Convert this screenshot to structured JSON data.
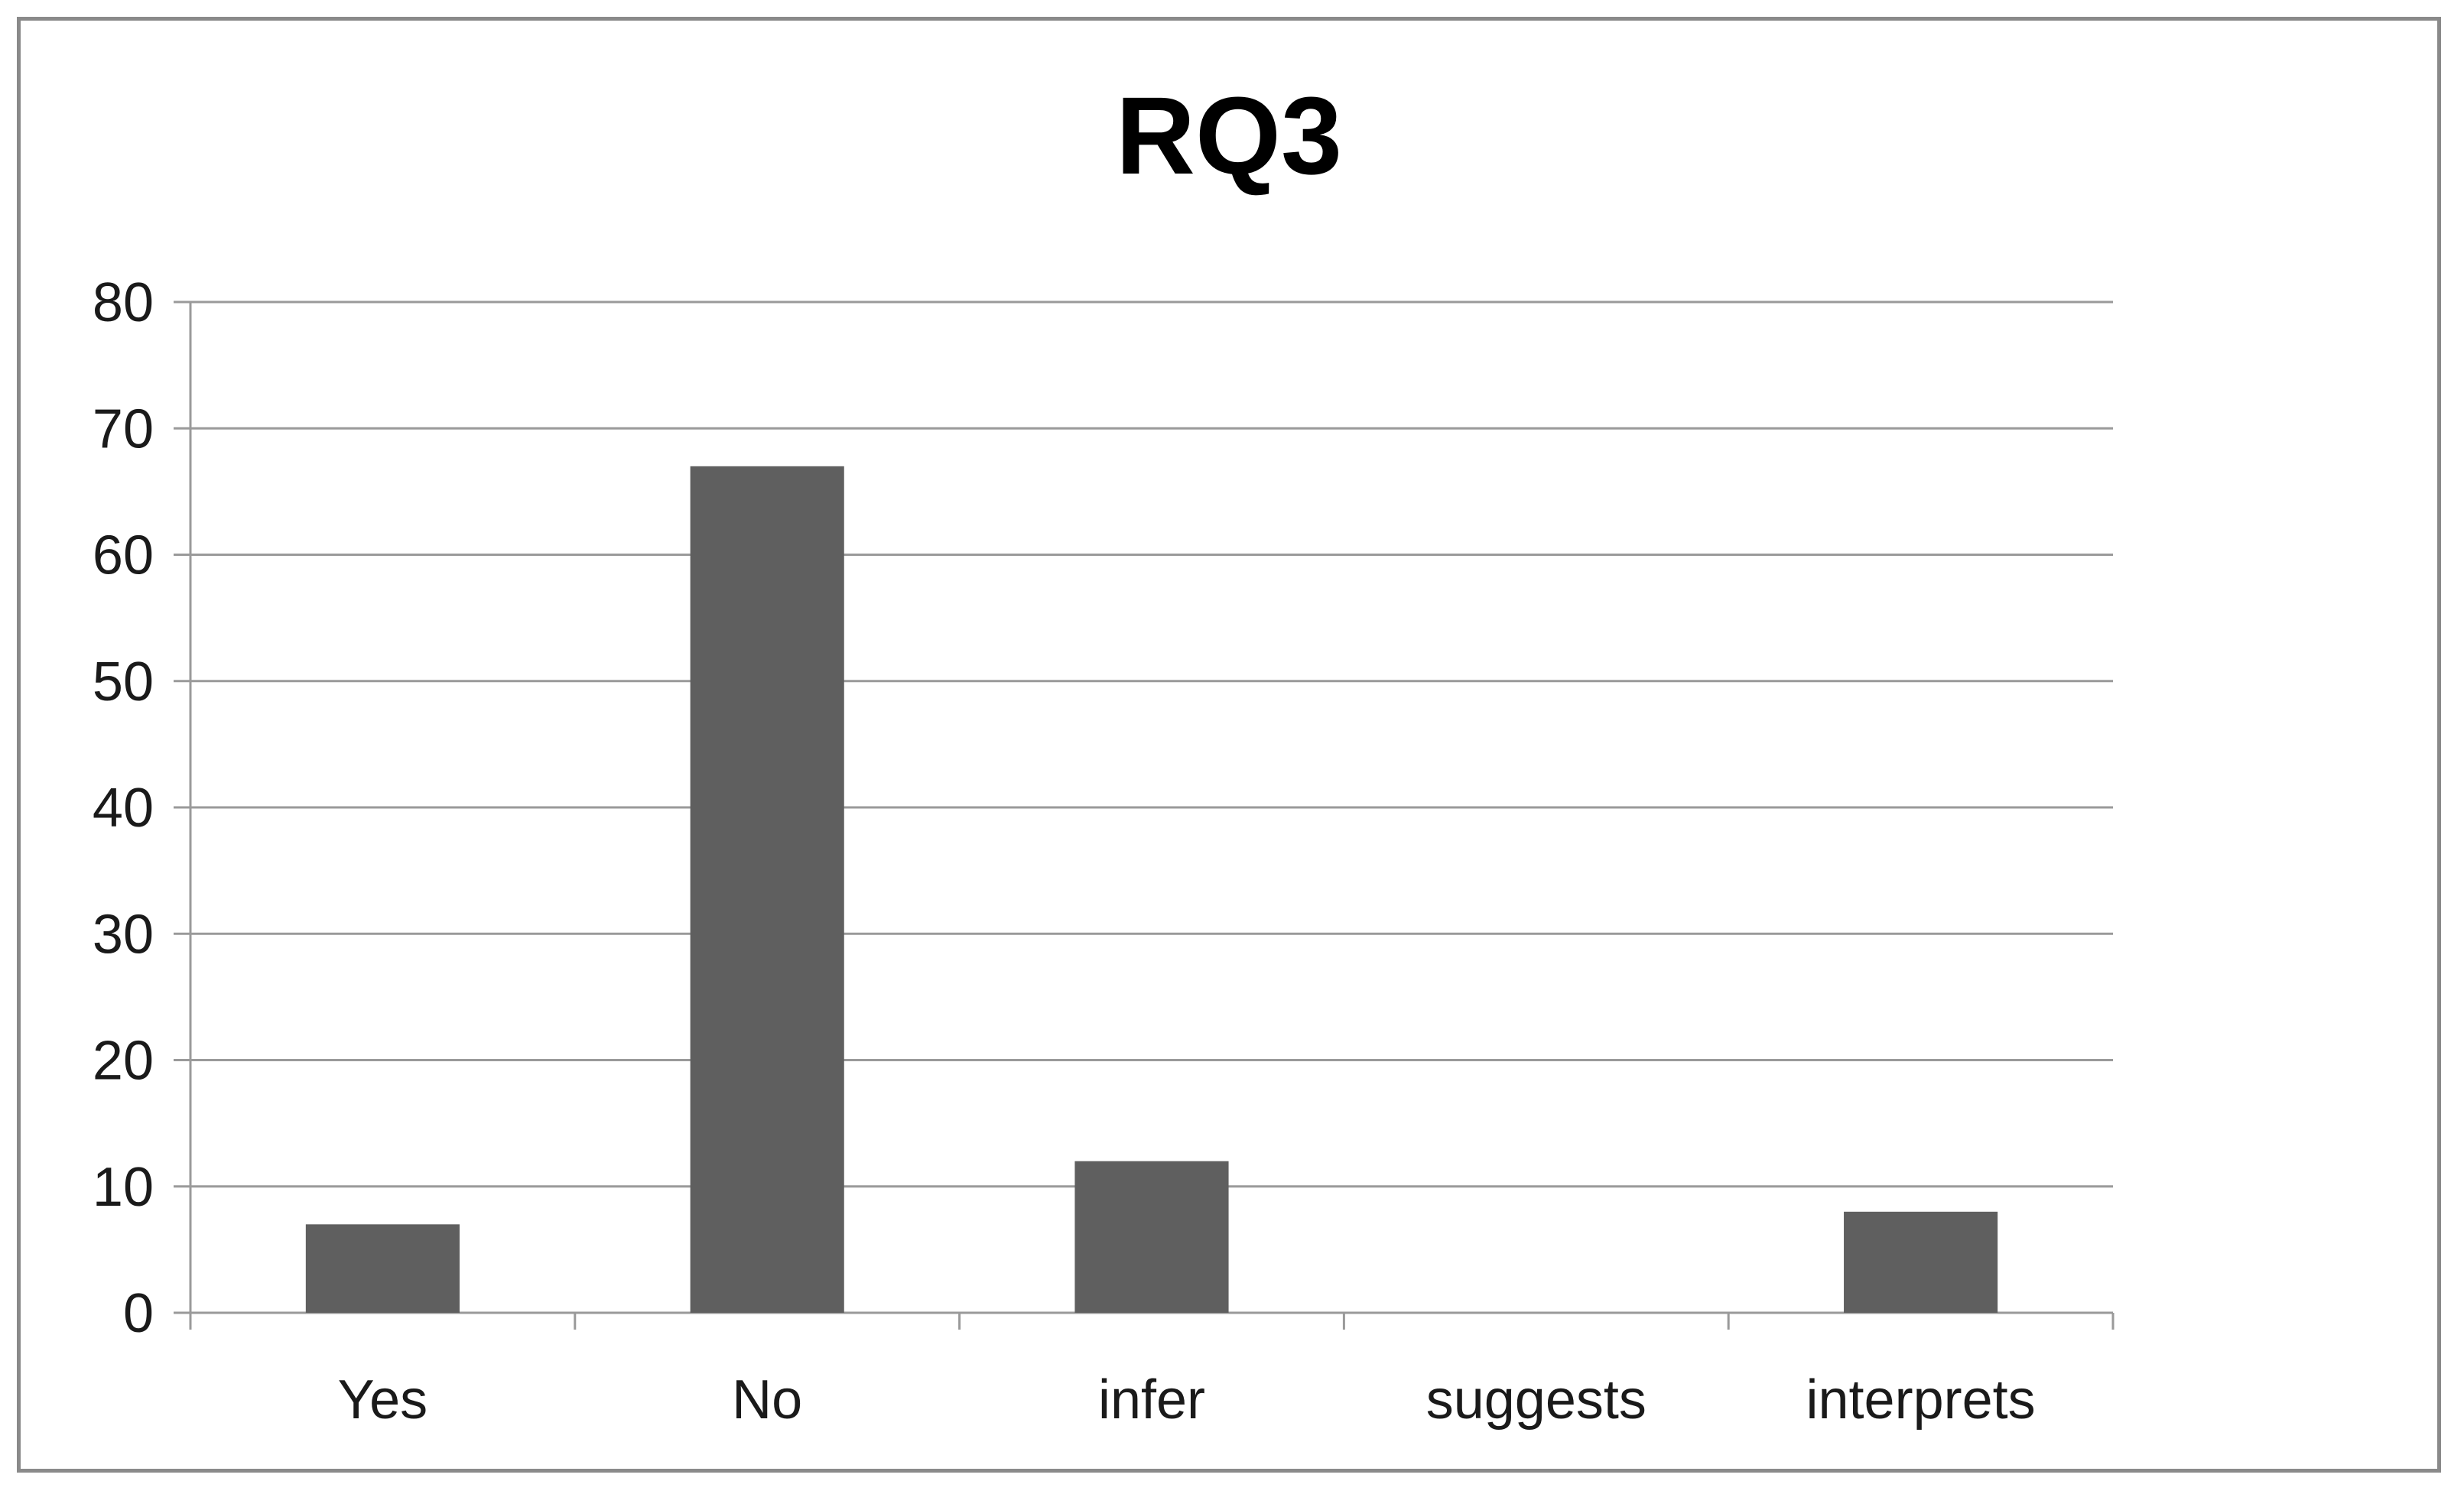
{
  "chart_data": {
    "type": "bar",
    "title": "RQ3",
    "categories": [
      "Yes",
      "No",
      "infer",
      "suggests",
      "interprets"
    ],
    "values": [
      7,
      67,
      12,
      0,
      8
    ],
    "ylim": [
      0,
      80
    ],
    "yticks": [
      "0",
      "10",
      "20",
      "30",
      "40",
      "50",
      "60",
      "70",
      "80"
    ],
    "xlabel": "",
    "ylabel": "",
    "grid": true,
    "legend": "none",
    "bar_color": "#5f5f5f",
    "grid_color": "#9a9a9a"
  }
}
